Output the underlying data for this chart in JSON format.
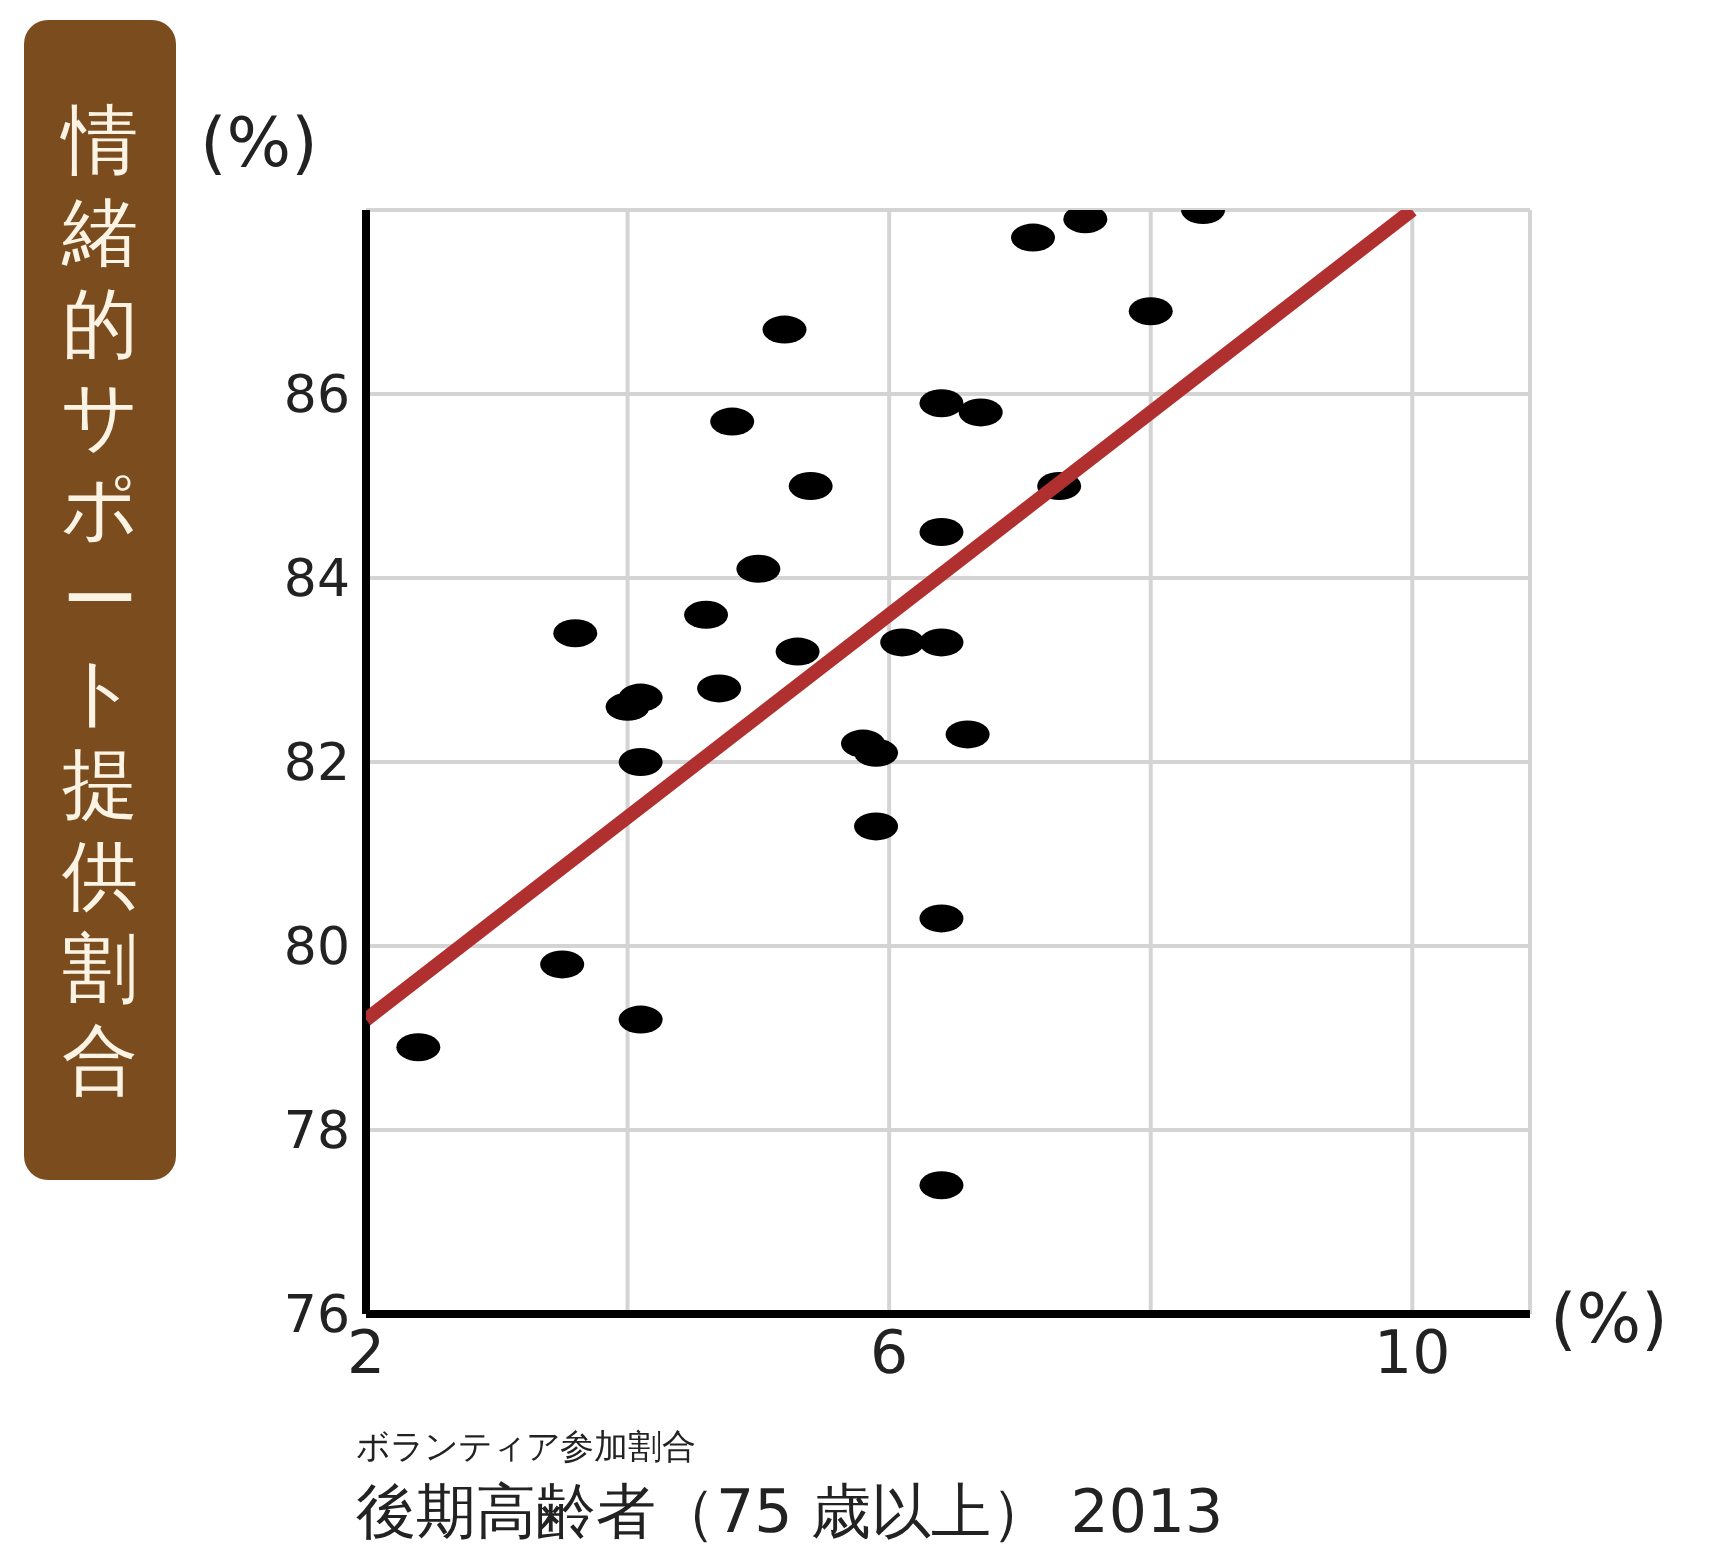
{
  "chart_data": {
    "type": "scatter",
    "ylabel": "情緒的サポート提供割合",
    "xlabel": "ボランティア参加割合",
    "annotations": [
      "(%)",
      "(%)",
      "後期高齢者（75 歳以上） 2013"
    ],
    "xlim": [
      2,
      10.9
    ],
    "xticks": [
      2,
      {
        "value": 4,
        "label": null
      },
      6,
      {
        "value": 8,
        "label": null
      },
      10
    ],
    "ylim": [
      76,
      88
    ],
    "yticks": [
      76,
      78,
      80,
      82,
      84,
      86
    ],
    "grid": true,
    "legend": false,
    "series": [
      {
        "marker": "circle",
        "color": "#000000",
        "x": [
          2.4,
          3.5,
          4.1,
          3.6,
          4.0,
          4.1,
          4.1,
          4.6,
          4.7,
          4.8,
          5.0,
          5.2,
          5.3,
          5.4,
          5.8,
          5.9,
          5.9,
          6.1,
          6.4,
          6.4,
          6.4,
          6.7,
          6.6,
          6.4,
          6.4,
          7.3,
          7.1,
          7.5,
          8.0,
          8.4
        ],
        "values": [
          78.9,
          79.8,
          79.2,
          83.4,
          82.6,
          82.7,
          82.0,
          83.6,
          82.8,
          85.7,
          84.1,
          86.7,
          83.2,
          85.0,
          82.2,
          82.1,
          81.3,
          83.3,
          83.3,
          84.5,
          85.9,
          85.8,
          82.3,
          80.3,
          77.4,
          85.0,
          87.7,
          87.9,
          86.9,
          88.0
        ]
      },
      {
        "type": "line",
        "color": "#b03030",
        "x": [
          2,
          10
        ],
        "values": [
          79.2,
          88.0
        ]
      }
    ]
  }
}
